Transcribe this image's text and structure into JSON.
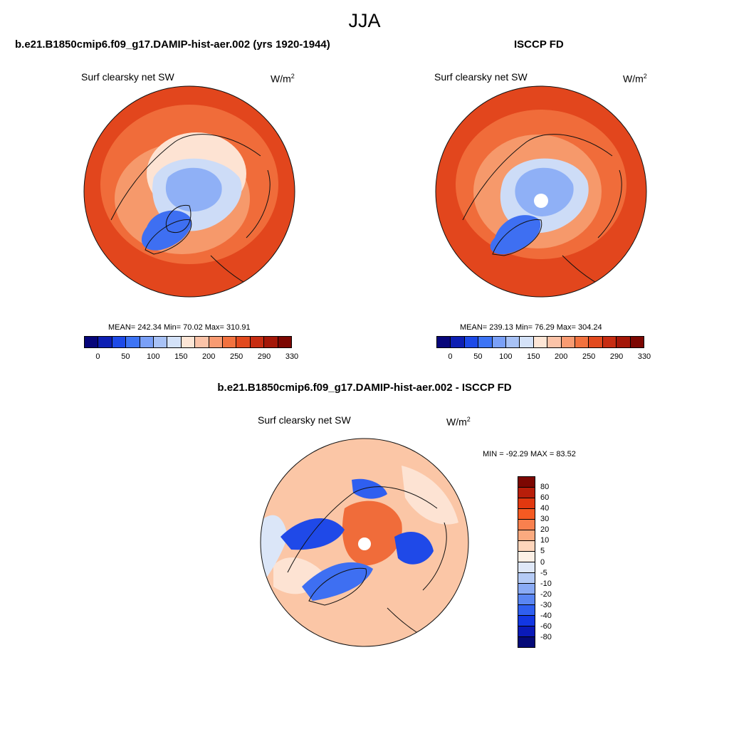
{
  "title": "JJA",
  "panels": [
    {
      "case": "b.e21.B1850cmip6.f09_g17.DAMIP-hist-aer.002 (yrs 1920-1944)",
      "variable": "Surf clearsky net SW",
      "units": "W/m",
      "units_sup": "2",
      "stats": "MEAN= 242.34  Min=  70.02  Max= 310.91"
    },
    {
      "case": "ISCCP FD",
      "variable": "Surf clearsky net SW",
      "units": "W/m",
      "units_sup": "2",
      "stats": "MEAN= 239.13  Min=  76.29  Max= 304.24"
    },
    {
      "case": "b.e21.B1850cmip6.f09_g17.DAMIP-hist-aer.002 - ISCCP FD",
      "variable": "Surf clearsky net SW",
      "units": "W/m",
      "units_sup": "2",
      "stats": "MIN = -92.29 MAX =  83.52"
    }
  ],
  "colorbar_abs": {
    "ticks": [
      "0",
      "50",
      "100",
      "150",
      "200",
      "250",
      "290",
      "330"
    ],
    "colors": [
      "#07067a",
      "#0d1fb3",
      "#1d4ae8",
      "#3d74f5",
      "#7aa0f7",
      "#a8c2f6",
      "#d4e2f8",
      "#fde6d6",
      "#fbc3a8",
      "#f89b72",
      "#f2723f",
      "#e24a1e",
      "#c72d12",
      "#a41708",
      "#7c0702"
    ]
  },
  "colorbar_diff": {
    "ticks": [
      "80",
      "60",
      "40",
      "30",
      "20",
      "10",
      "5",
      "0",
      "-5",
      "-10",
      "-20",
      "-30",
      "-40",
      "-60",
      "-80"
    ],
    "colors": [
      "#7c0702",
      "#b81e0a",
      "#e1380f",
      "#f55a22",
      "#f8804e",
      "#fbaa7f",
      "#fed5bb",
      "#fdf0e6",
      "#dfe8f8",
      "#b5cbf6",
      "#8aabf5",
      "#5a86f3",
      "#2f5ff0",
      "#1237e3",
      "#0a1ab8",
      "#050a78"
    ]
  },
  "map_colors": {
    "ocean_warm": "#e2461d",
    "mid_warm": "#f06c3a",
    "light_warm": "#f8a57d",
    "pale": "#fde3d3",
    "pale_blue": "#cddcf7",
    "mid_blue": "#8fb0f6",
    "deep_blue": "#3e6ff2",
    "coast": "#111111"
  }
}
